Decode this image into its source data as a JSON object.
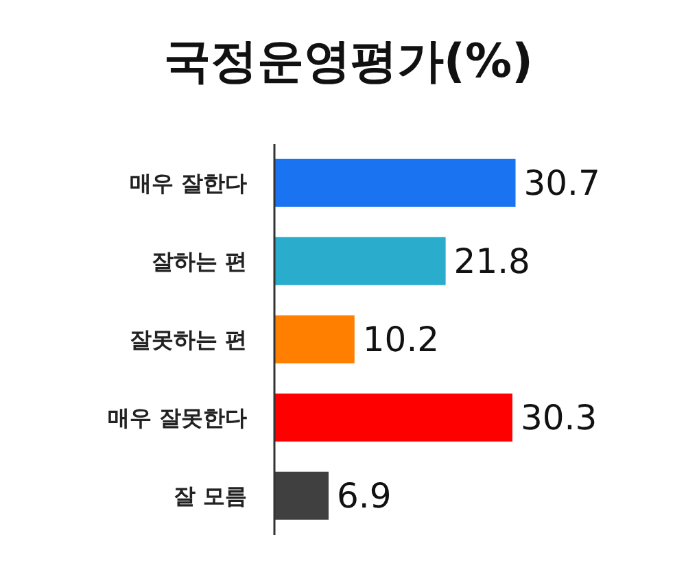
{
  "chart_data": {
    "type": "bar",
    "orientation": "horizontal",
    "title": "국정운영평가(%)",
    "categories": [
      "매우 잘한다",
      "잘하는 편",
      "잘못하는 편",
      "매우 잘못한다",
      "잘 모름"
    ],
    "values": [
      30.7,
      21.8,
      10.2,
      30.3,
      6.9
    ],
    "colors": [
      "#1a73f0",
      "#2aaccc",
      "#ff8000",
      "#ff0000",
      "#404040"
    ],
    "data_labels": true
  }
}
